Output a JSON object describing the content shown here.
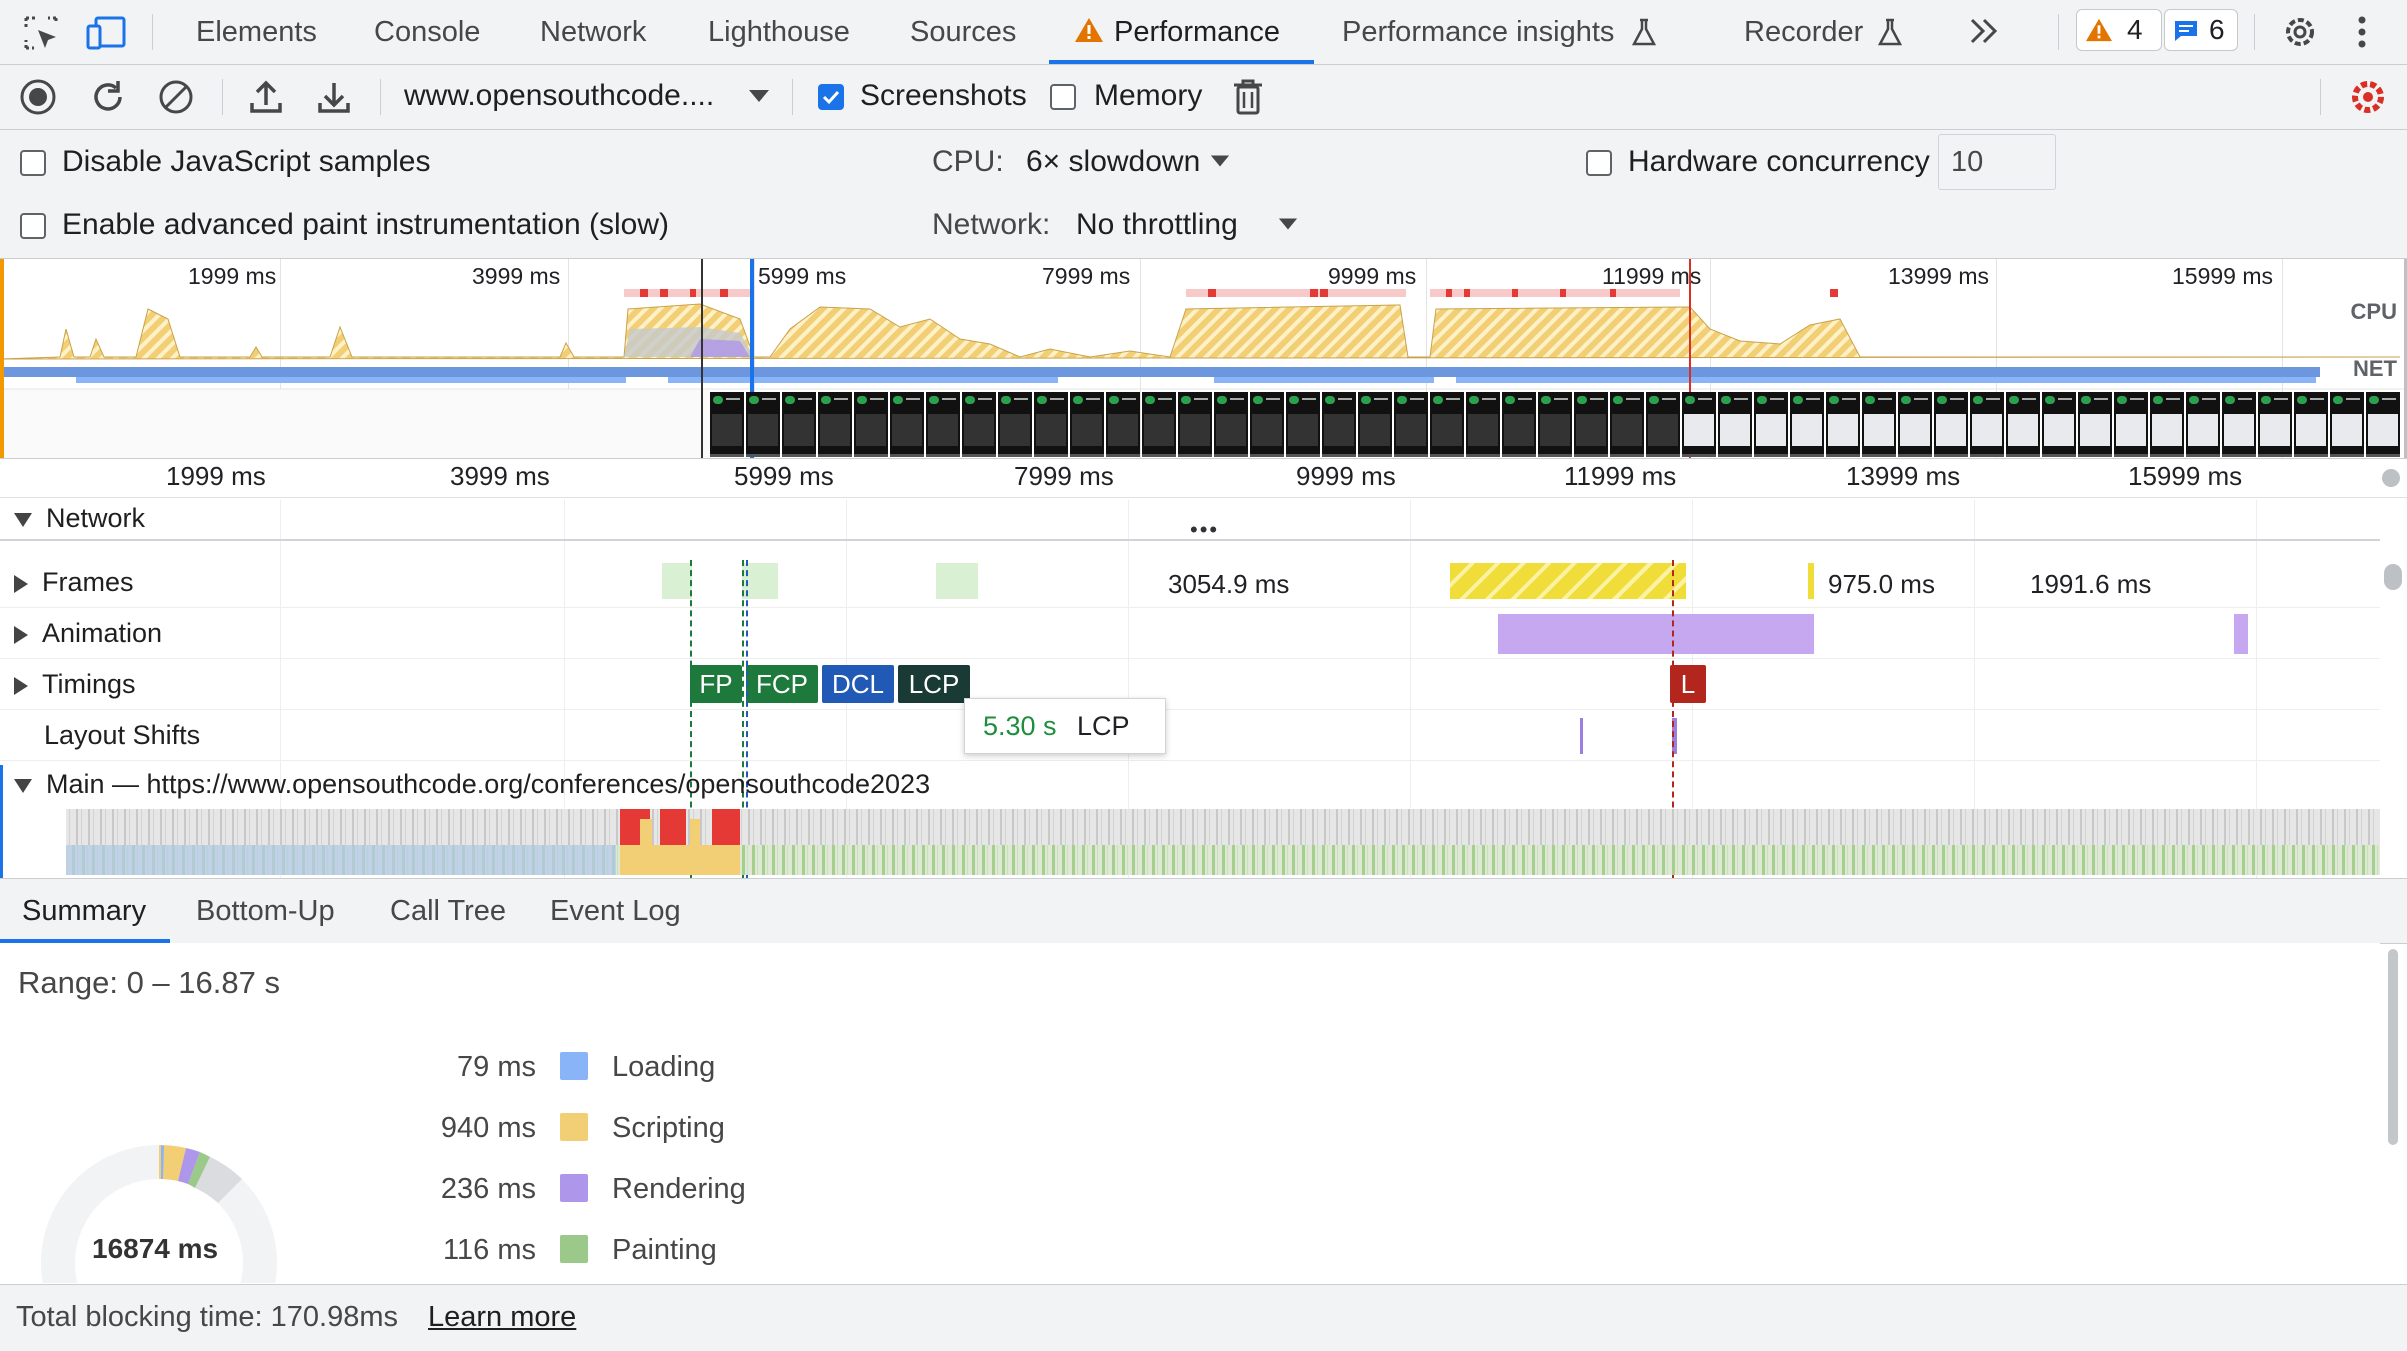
{
  "tabs": {
    "items": [
      {
        "label": "Elements"
      },
      {
        "label": "Console"
      },
      {
        "label": "Network"
      },
      {
        "label": "Lighthouse"
      },
      {
        "label": "Sources"
      },
      {
        "label": "Performance"
      },
      {
        "label": "Performance insights"
      },
      {
        "label": "Recorder"
      }
    ],
    "warnings_count": "4",
    "messages_count": "6"
  },
  "toolbar": {
    "url": "www.opensouthcode....",
    "screenshots_label": "Screenshots",
    "screenshots_checked": true,
    "memory_label": "Memory",
    "memory_checked": false
  },
  "settings": {
    "disable_js_samples": "Disable JavaScript samples",
    "advanced_paint": "Enable advanced paint instrumentation (slow)",
    "cpu_label": "CPU:",
    "cpu_value": "6× slowdown",
    "network_label": "Network:",
    "network_value": "No throttling",
    "hw_concurrency_label": "Hardware concurrency",
    "hw_concurrency_value": "10"
  },
  "overview": {
    "ticks": [
      "1999 ms",
      "3999 ms",
      "5999 ms",
      "7999 ms",
      "9999 ms",
      "11999 ms",
      "13999 ms",
      "15999 ms"
    ],
    "cpu_label": "CPU",
    "net_label": "NET"
  },
  "ruler": {
    "ticks": [
      "1999 ms",
      "3999 ms",
      "5999 ms",
      "7999 ms",
      "9999 ms",
      "11999 ms",
      "13999 ms",
      "15999 ms"
    ]
  },
  "tracks": {
    "network": "Network",
    "frames": "Frames",
    "frames_values": [
      "3054.9 ms",
      "975.0 ms",
      "1991.6 ms"
    ],
    "animation": "Animation",
    "timings": "Timings",
    "layout_shifts": "Layout Shifts",
    "main": "Main — https://www.opensouthcode.org/conferences/opensouthcode2023",
    "markers": {
      "fp": "FP",
      "fcp": "FCP",
      "dcl": "DCL",
      "lcp": "LCP",
      "l": "L"
    },
    "tooltip_time": "5.30 s",
    "tooltip_label": "LCP"
  },
  "bottom_tabs": [
    "Summary",
    "Bottom-Up",
    "Call Tree",
    "Event Log"
  ],
  "summary": {
    "range": "Range: 0 – 16.87 s",
    "total": "16874 ms",
    "legend": [
      {
        "value": "79 ms",
        "name": "Loading",
        "color": "#8ab4f8"
      },
      {
        "value": "940 ms",
        "name": "Scripting",
        "color": "#f2cf75"
      },
      {
        "value": "236 ms",
        "name": "Rendering",
        "color": "#ae96ea"
      },
      {
        "value": "116 ms",
        "name": "Painting",
        "color": "#9ac98a"
      }
    ]
  },
  "footer": {
    "tbt": "Total blocking time: 170.98ms",
    "learn_more": "Learn more"
  },
  "colors": {
    "accent": "#1a73e8",
    "timing_fp": "#1e7a3c",
    "timing_fcp": "#1e7a3c",
    "timing_dcl": "#2159b7",
    "timing_lcp": "#1a3b35",
    "timing_l": "#b3261e"
  }
}
